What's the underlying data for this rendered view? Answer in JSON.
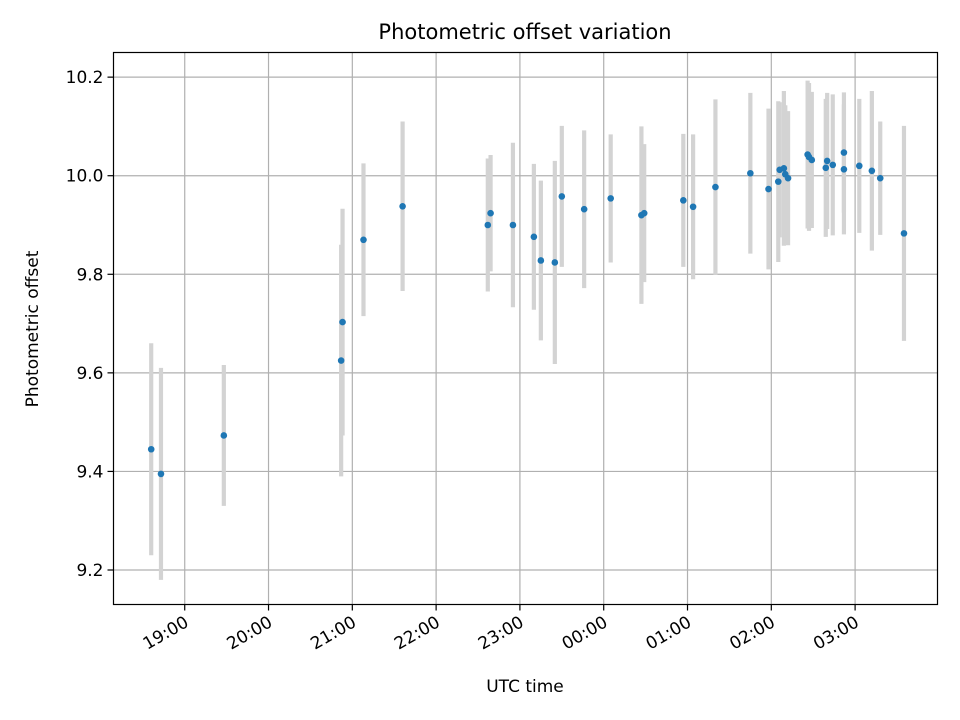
{
  "chart_data": {
    "type": "scatter",
    "title": "Photometric offset variation",
    "xlabel": "UTC time",
    "ylabel": "Photometric offset",
    "x_is_time": true,
    "x_ticks": [
      "19:00",
      "20:00",
      "21:00",
      "22:00",
      "23:00",
      "00:00",
      "01:00",
      "02:00",
      "03:00"
    ],
    "y_ticks": [
      "9.2",
      "9.4",
      "9.6",
      "9.8",
      "10.0",
      "10.2"
    ],
    "xlim": [
      "18:09",
      "03:59"
    ],
    "ylim": [
      9.13,
      10.25
    ],
    "grid": true,
    "series": [
      {
        "marker": "circle",
        "color": "#1f77b4",
        "error_color": "#d3d3d3",
        "points": [
          {
            "x": "18:36",
            "y": 9.445,
            "err": 0.215
          },
          {
            "x": "18:43",
            "y": 9.395,
            "err": 0.215
          },
          {
            "x": "19:28",
            "y": 9.473,
            "err": 0.143
          },
          {
            "x": "20:52",
            "y": 9.625,
            "err": 0.235
          },
          {
            "x": "20:53",
            "y": 9.703,
            "err": 0.23
          },
          {
            "x": "21:08",
            "y": 9.87,
            "err": 0.155
          },
          {
            "x": "21:36",
            "y": 9.938,
            "err": 0.172
          },
          {
            "x": "22:37",
            "y": 9.9,
            "err": 0.135
          },
          {
            "x": "22:39",
            "y": 9.924,
            "err": 0.118
          },
          {
            "x": "22:55",
            "y": 9.9,
            "err": 0.167
          },
          {
            "x": "23:10",
            "y": 9.876,
            "err": 0.148
          },
          {
            "x": "23:15",
            "y": 9.828,
            "err": 0.162
          },
          {
            "x": "23:25",
            "y": 9.824,
            "err": 0.206
          },
          {
            "x": "23:30",
            "y": 9.958,
            "err": 0.143
          },
          {
            "x": "23:46",
            "y": 9.932,
            "err": 0.16
          },
          {
            "x": "00:05",
            "y": 9.954,
            "err": 0.13
          },
          {
            "x": "00:27",
            "y": 9.92,
            "err": 0.18
          },
          {
            "x": "00:29",
            "y": 9.924,
            "err": 0.14
          },
          {
            "x": "00:57",
            "y": 9.95,
            "err": 0.135
          },
          {
            "x": "01:04",
            "y": 9.937,
            "err": 0.147
          },
          {
            "x": "01:20",
            "y": 9.977,
            "err": 0.178
          },
          {
            "x": "01:45",
            "y": 10.005,
            "err": 0.163
          },
          {
            "x": "01:58",
            "y": 9.973,
            "err": 0.163
          },
          {
            "x": "02:05",
            "y": 9.988,
            "err": 0.163
          },
          {
            "x": "02:06",
            "y": 10.012,
            "err": 0.137
          },
          {
            "x": "02:09",
            "y": 10.015,
            "err": 0.157
          },
          {
            "x": "02:10",
            "y": 10.003,
            "err": 0.14
          },
          {
            "x": "02:12",
            "y": 9.995,
            "err": 0.136
          },
          {
            "x": "02:26",
            "y": 10.043,
            "err": 0.15
          },
          {
            "x": "02:27",
            "y": 10.038,
            "err": 0.15
          },
          {
            "x": "02:29",
            "y": 10.032,
            "err": 0.138
          },
          {
            "x": "02:39",
            "y": 10.016,
            "err": 0.14
          },
          {
            "x": "02:40",
            "y": 10.03,
            "err": 0.138
          },
          {
            "x": "02:44",
            "y": 10.022,
            "err": 0.143
          },
          {
            "x": "02:52",
            "y": 10.047,
            "err": 0.122
          },
          {
            "x": "02:52",
            "y": 10.013,
            "err": 0.132
          },
          {
            "x": "03:03",
            "y": 10.02,
            "err": 0.136
          },
          {
            "x": "03:12",
            "y": 10.01,
            "err": 0.162
          },
          {
            "x": "03:18",
            "y": 9.995,
            "err": 0.115
          },
          {
            "x": "03:35",
            "y": 9.883,
            "err": 0.218
          }
        ]
      }
    ]
  }
}
